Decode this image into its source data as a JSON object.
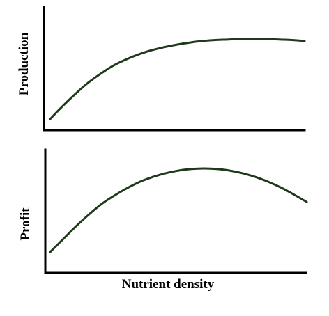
{
  "chart_data": [
    {
      "type": "line",
      "title": "",
      "xlabel": "",
      "ylabel": "Production",
      "xlim": [
        0,
        100
      ],
      "ylim": [
        0,
        100
      ],
      "ticks": false,
      "grid": false,
      "legend": "none",
      "line_color": "#1f3a1a",
      "series": [
        {
          "x": [
            0,
            5,
            10,
            15,
            20,
            25,
            30,
            35,
            40,
            45,
            50,
            55,
            60,
            65,
            70,
            75,
            80,
            85,
            90,
            95,
            100
          ],
          "values": [
            8,
            21,
            33,
            44,
            53,
            61,
            67,
            72,
            76,
            79,
            81.5,
            83.5,
            85,
            86,
            86.5,
            87,
            87,
            87,
            86.5,
            86,
            85
          ]
        }
      ]
    },
    {
      "type": "line",
      "title": "",
      "xlabel": "Nutrient density",
      "ylabel": "Profit",
      "xlim": [
        0,
        100
      ],
      "ylim": [
        0,
        100
      ],
      "ticks": false,
      "grid": false,
      "legend": "none",
      "line_color": "#1f3a1a",
      "series": [
        {
          "x": [
            0,
            5,
            10,
            15,
            20,
            25,
            30,
            35,
            40,
            45,
            50,
            55,
            60,
            65,
            70,
            75,
            80,
            85,
            90,
            95,
            100
          ],
          "values": [
            19,
            31,
            43,
            54,
            64,
            72,
            79,
            85,
            89.5,
            93,
            95.5,
            97,
            97.5,
            97,
            95.5,
            93,
            89.5,
            85,
            79.5,
            73,
            66
          ]
        }
      ]
    }
  ]
}
